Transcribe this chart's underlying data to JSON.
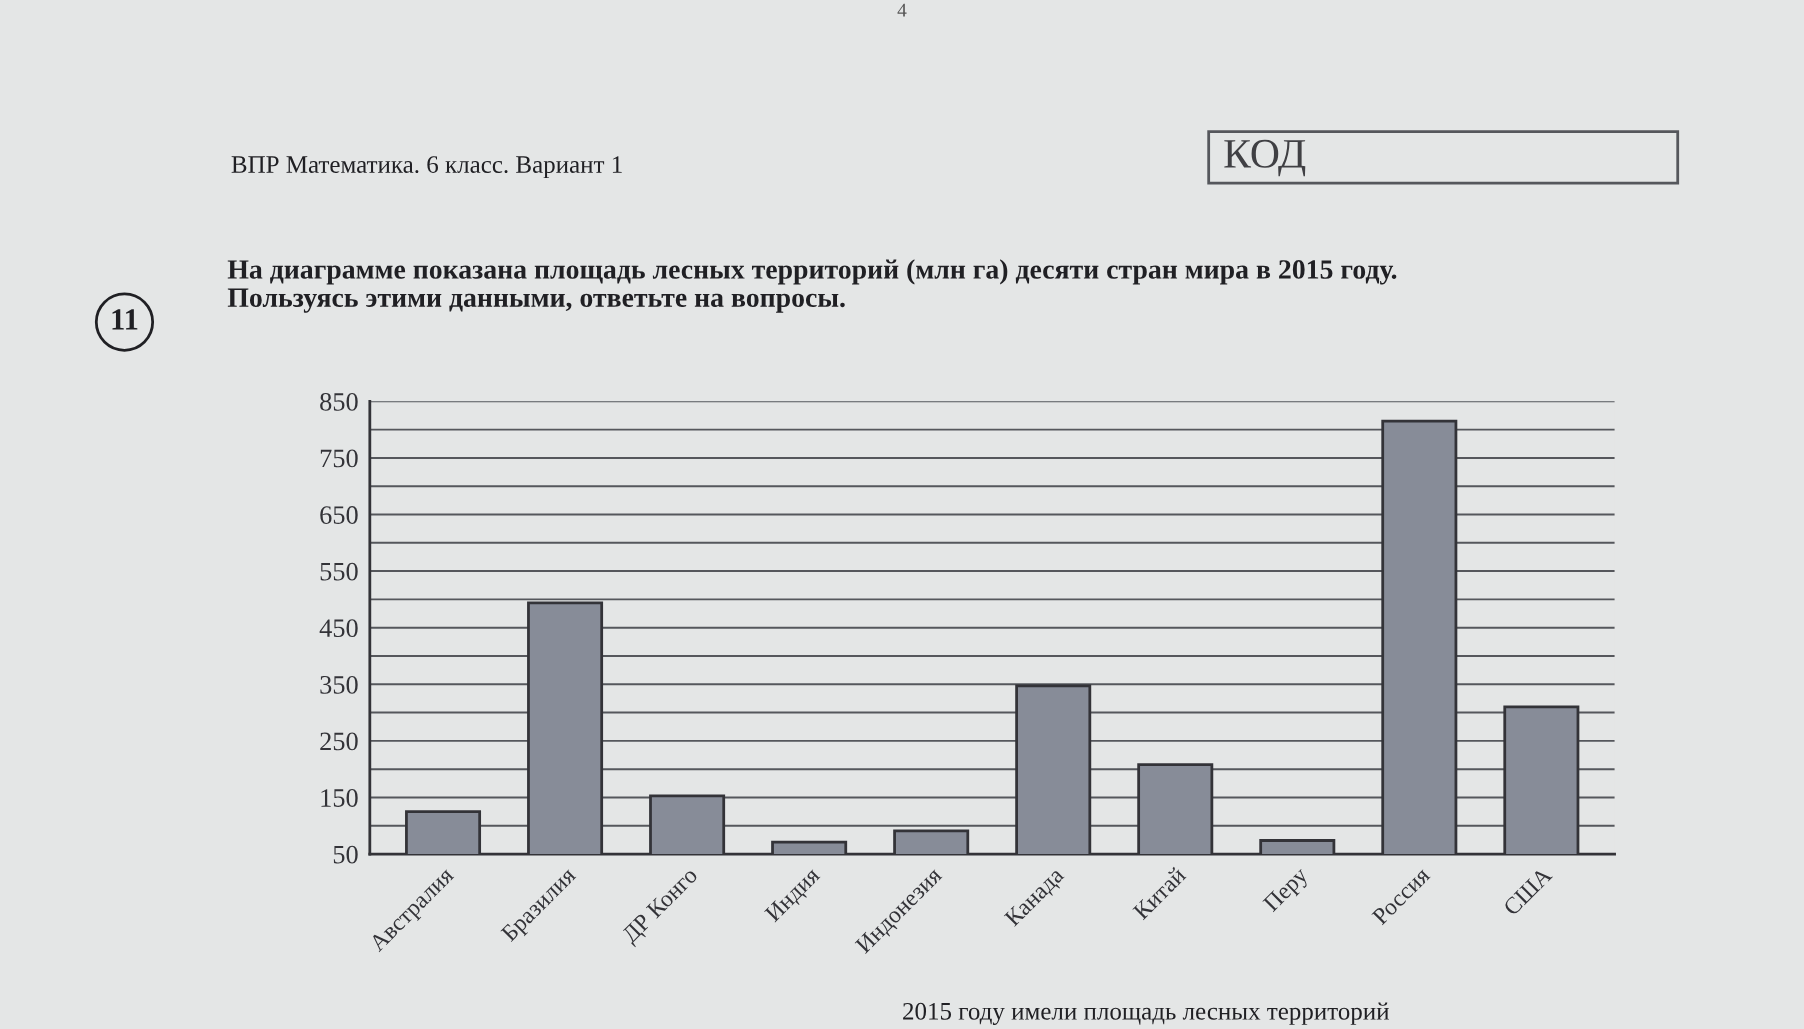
{
  "chart_data": {
    "type": "bar",
    "title": "На диаграмме показана площадь лесных территорий (млн га) десяти стран мира в 2015 году.\nПользуясь этими данными, ответьте на вопросы.",
    "annotations": [
      "4",
      "ВПР Математика. 6 класс. Вариант 1",
      "КОД",
      "11",
      "2015 году имели площадь лесных территорий"
    ],
    "categories": [
      "Австралия",
      "Бразилия",
      "ДР Конго",
      "Индия",
      "Индонезия",
      "Канада",
      "Китай",
      "Перу",
      "Россия",
      "США"
    ],
    "series": [
      {
        "color": "#878c98",
        "values": [
          125,
          494,
          153,
          71,
          91,
          347,
          208,
          74,
          815,
          310
        ]
      }
    ],
    "ylim": [
      50,
      850
    ],
    "yticks": [
      50,
      {
        "value": 100,
        "label": null
      },
      150,
      {
        "value": 200,
        "label": null
      },
      250,
      {
        "value": 300,
        "label": null
      },
      350,
      {
        "value": 400,
        "label": null
      },
      450,
      {
        "value": 500,
        "label": null
      },
      550,
      {
        "value": 600,
        "label": null
      },
      650,
      {
        "value": 700,
        "label": null
      },
      750,
      {
        "value": 800,
        "label": null
      },
      850
    ],
    "grid": "y"
  }
}
